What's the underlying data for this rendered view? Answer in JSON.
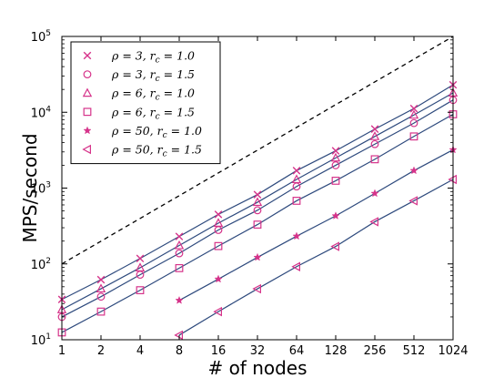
{
  "chart_data": {
    "type": "line",
    "xscale": "log2",
    "yscale": "log10",
    "xlabel": "# of nodes",
    "ylabel": "MPS/second",
    "x_ticks": [
      "1",
      "2",
      "4",
      "8",
      "16",
      "32",
      "64",
      "128",
      "256",
      "512",
      "1024"
    ],
    "y_ticks": [
      {
        "base": "10",
        "exp": "1",
        "value": 10
      },
      {
        "base": "10",
        "exp": "2",
        "value": 100
      },
      {
        "base": "10",
        "exp": "3",
        "value": 1000
      },
      {
        "base": "10",
        "exp": "4",
        "value": 10000
      },
      {
        "base": "10",
        "exp": "5",
        "value": 100000
      }
    ],
    "xlim": [
      1,
      1024
    ],
    "ylim": [
      10,
      100000
    ],
    "legend_position": "top-left",
    "line_color": "#2e4a7d",
    "marker_color": "#d6338a",
    "reference_line": {
      "style": "dashed",
      "color": "#000000",
      "x": [
        1,
        1024
      ],
      "y": [
        100,
        100000
      ]
    },
    "series": [
      {
        "name": "ρ = 3, r_c = 1.0",
        "label_parts": [
          "ρ = 3, r",
          "c",
          " = 1.0"
        ],
        "marker": "x",
        "x": [
          1,
          2,
          4,
          8,
          16,
          32,
          64,
          128,
          256,
          512,
          1024
        ],
        "y": [
          34,
          62,
          118,
          230,
          450,
          820,
          1700,
          3100,
          6000,
          11200,
          23000
        ]
      },
      {
        "name": "ρ = 3, r_c = 1.5",
        "label_parts": [
          "ρ = 3, r",
          "c",
          " = 1.5"
        ],
        "marker": "circle",
        "x": [
          1,
          2,
          4,
          8,
          16,
          32,
          64,
          128,
          256,
          512,
          1024
        ],
        "y": [
          20,
          37,
          72,
          138,
          280,
          510,
          1050,
          2000,
          3800,
          7200,
          14500
        ]
      },
      {
        "name": "ρ = 6, r_c = 1.0",
        "label_parts": [
          "ρ = 6, r",
          "c",
          " = 1.0"
        ],
        "marker": "triangle-up",
        "x": [
          1,
          2,
          4,
          8,
          16,
          32,
          64,
          128,
          256,
          512,
          1024
        ],
        "y": [
          25,
          47,
          89,
          175,
          345,
          650,
          1300,
          2500,
          4800,
          9200,
          18000
        ]
      },
      {
        "name": "ρ = 6, r_c = 1.5",
        "label_parts": [
          "ρ = 6, r",
          "c",
          " = 1.5"
        ],
        "marker": "square",
        "x": [
          1,
          2,
          4,
          8,
          16,
          32,
          64,
          128,
          256,
          512,
          1024
        ],
        "y": [
          12.5,
          23.5,
          45,
          88,
          172,
          330,
          680,
          1250,
          2400,
          4800,
          9400
        ]
      },
      {
        "name": "ρ = 50, r_c = 1.0",
        "label_parts": [
          "ρ = 50, r",
          "c",
          " = 1.0"
        ],
        "marker": "star",
        "x": [
          8,
          16,
          32,
          64,
          128,
          256,
          512,
          1024
        ],
        "y": [
          33,
          63,
          122,
          232,
          430,
          850,
          1700,
          3200
        ]
      },
      {
        "name": "ρ = 50, r_c = 1.5",
        "label_parts": [
          "ρ = 50, r",
          "c",
          " = 1.5"
        ],
        "marker": "triangle-left",
        "x": [
          8,
          16,
          32,
          64,
          128,
          256,
          512,
          1024
        ],
        "y": [
          11.5,
          23.5,
          47,
          92,
          170,
          360,
          680,
          1300
        ]
      }
    ]
  }
}
